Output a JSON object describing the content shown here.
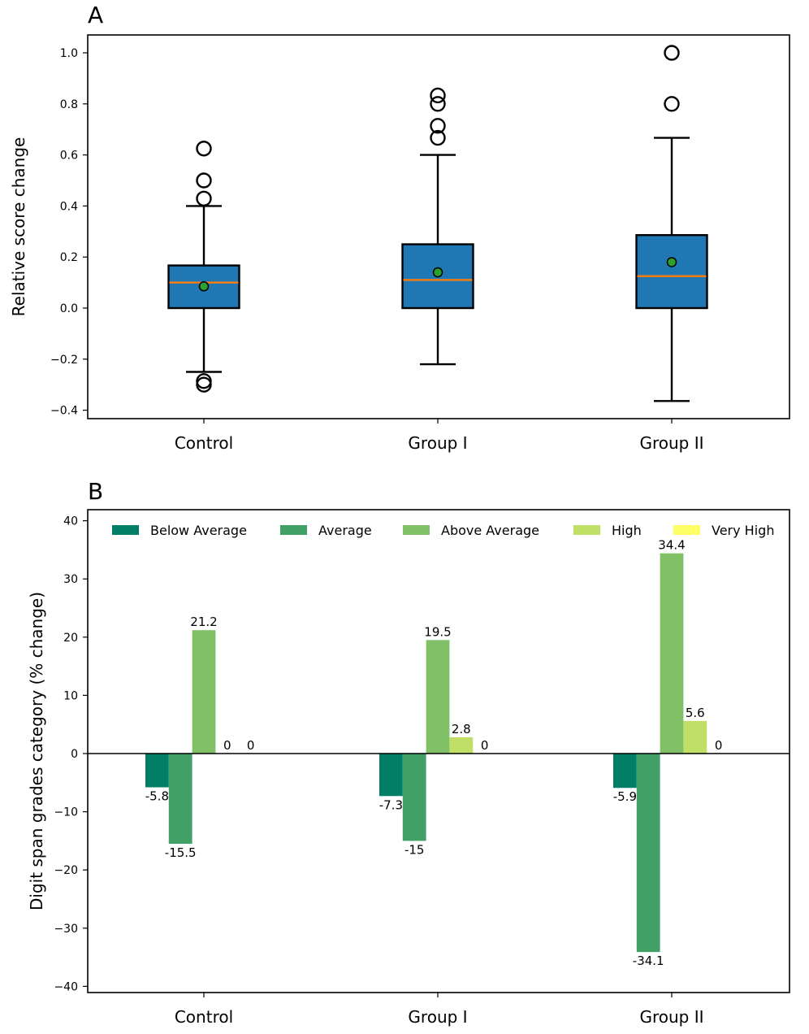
{
  "panels": {
    "a": "A",
    "b": "B"
  },
  "chart_data": [
    {
      "type": "box",
      "ylabel": "Relative score change",
      "categories": [
        "Control",
        "Group I",
        "Group II"
      ],
      "ylim": [
        -0.43,
        1.07
      ],
      "yticks": [
        "−0.4",
        "−0.2",
        "0.0",
        "0.2",
        "0.4",
        "0.6",
        "0.8",
        "1.0"
      ],
      "ytick_values": [
        -0.4,
        -0.2,
        0.0,
        0.2,
        0.4,
        0.6,
        0.8,
        1.0
      ],
      "boxes": [
        {
          "whisker_low": -0.25,
          "q1": 0.0,
          "median": 0.1,
          "q3": 0.167,
          "whisker_high": 0.4,
          "mean": 0.085,
          "outliers": [
            0.625,
            0.5,
            0.429,
            -0.286,
            -0.3
          ]
        },
        {
          "whisker_low": -0.22,
          "q1": 0.0,
          "median": 0.11,
          "q3": 0.25,
          "whisker_high": 0.6,
          "mean": 0.14,
          "outliers": [
            0.833,
            0.8,
            0.714,
            0.667
          ]
        },
        {
          "whisker_low": -0.364,
          "q1": 0.0,
          "median": 0.125,
          "q3": 0.286,
          "whisker_high": 0.667,
          "mean": 0.18,
          "outliers": [
            1.0,
            0.8
          ]
        }
      ],
      "colors": {
        "box": "#1f77b4",
        "median": "#ff7f0e",
        "mean": "#2ca02c"
      },
      "grid": false
    },
    {
      "type": "bar",
      "ylabel": "Digit span grades category (% change)",
      "categories": [
        "Control",
        "Group I",
        "Group II"
      ],
      "ylim": [
        -41,
        41
      ],
      "yticks": [
        "−40",
        "−30",
        "−20",
        "−10",
        "0",
        "10",
        "20",
        "30",
        "40"
      ],
      "ytick_values": [
        -40,
        -30,
        -20,
        -10,
        0,
        10,
        20,
        30,
        40
      ],
      "legend_position": "top",
      "series": [
        {
          "name": "Below Average",
          "color": "#007f66",
          "values": [
            -5.8,
            -7.3,
            -5.9
          ],
          "labels": [
            "-5.8",
            "-7.3",
            "-5.9"
          ]
        },
        {
          "name": "Average",
          "color": "#40a066",
          "values": [
            -15.5,
            -15,
            -34.1
          ],
          "labels": [
            "-15.5",
            "-15",
            "-34.1"
          ]
        },
        {
          "name": "Above Average",
          "color": "#80c066",
          "values": [
            21.2,
            19.5,
            34.4
          ],
          "labels": [
            "21.2",
            "19.5",
            "34.4"
          ]
        },
        {
          "name": "High",
          "color": "#bfdf66",
          "values": [
            0,
            2.8,
            5.6
          ],
          "labels": [
            "0",
            "2.8",
            "5.6"
          ]
        },
        {
          "name": "Very High",
          "color": "#ffff66",
          "values": [
            0,
            0,
            0
          ],
          "labels": [
            "0",
            "0",
            "0"
          ]
        }
      ],
      "grid": false
    }
  ]
}
